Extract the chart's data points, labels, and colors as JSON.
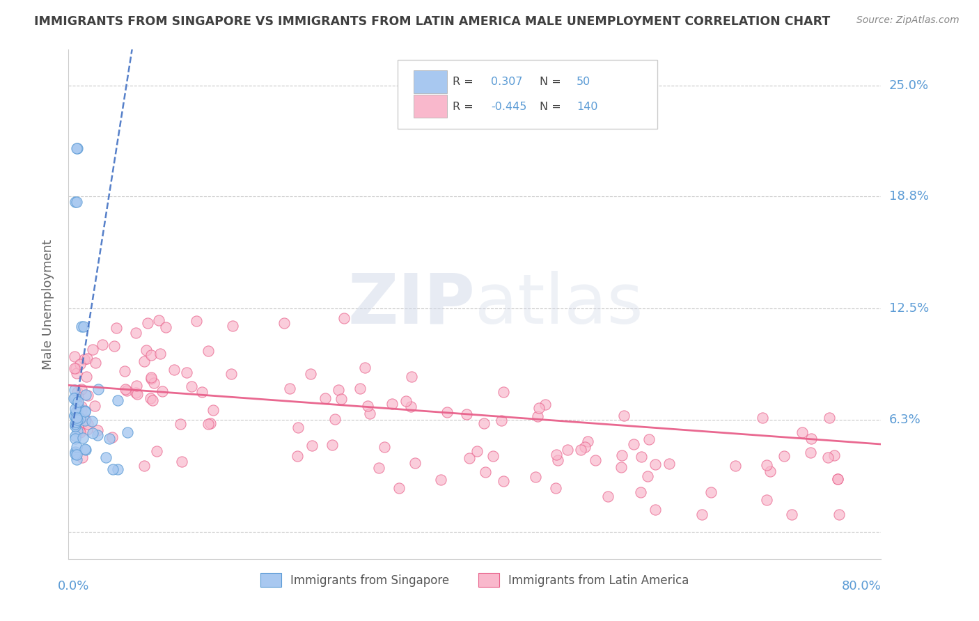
{
  "title": "IMMIGRANTS FROM SINGAPORE VS IMMIGRANTS FROM LATIN AMERICA MALE UNEMPLOYMENT CORRELATION CHART",
  "source": "Source: ZipAtlas.com",
  "ylabel": "Male Unemployment",
  "ytick_vals": [
    0.0,
    0.063,
    0.125,
    0.188,
    0.25
  ],
  "ytick_labels": [
    "",
    "6.3%",
    "12.5%",
    "18.8%",
    "25.0%"
  ],
  "xlim": [
    -0.005,
    0.82
  ],
  "ylim": [
    -0.015,
    0.27
  ],
  "watermark_zip": "ZIP",
  "watermark_atlas": "atlas",
  "legend_R1": "0.307",
  "legend_N1": "50",
  "legend_R2": "-0.445",
  "legend_N2": "140",
  "color_singapore": "#a8c8f0",
  "color_singapore_edge": "#5b9bd5",
  "color_latin": "#f9b8cc",
  "color_latin_edge": "#e8608a",
  "color_singapore_line": "#4472c4",
  "color_latin_line": "#e8608a",
  "color_title": "#404040",
  "color_yticks": "#5b9bd5",
  "color_source": "#888888",
  "color_grid": "#c8c8c8",
  "color_ylabel": "#666666"
}
